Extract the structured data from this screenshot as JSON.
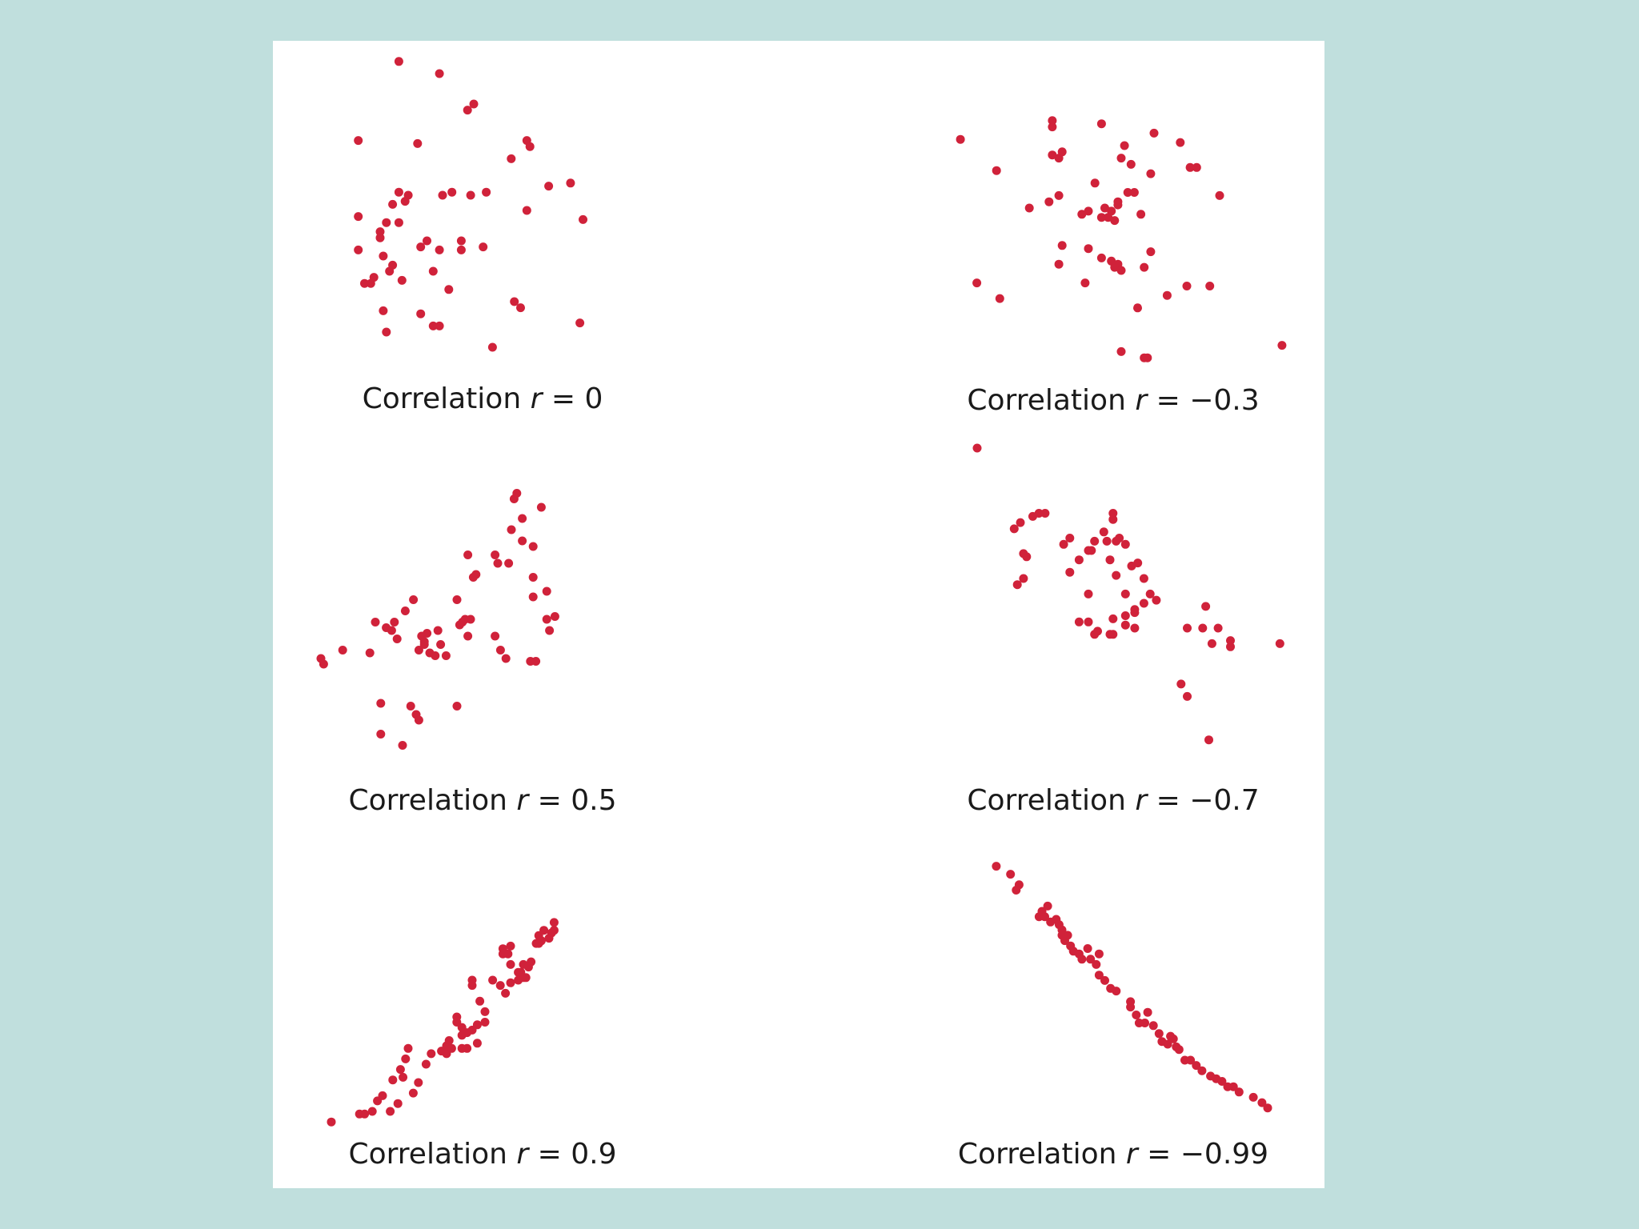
{
  "colors": {
    "background": "#c0dfdd",
    "panel": "#ffffff",
    "dot": "#d0223a",
    "text": "#1a1a1a"
  },
  "chart_data": [
    {
      "type": "scatter",
      "caption": {
        "prefix": "Correlation ",
        "variable": "r",
        "suffix": " = 0"
      },
      "xlim": [
        0,
        100
      ],
      "ylim": [
        0,
        100
      ],
      "points": [
        [
          26,
          99
        ],
        [
          39,
          95
        ],
        [
          48,
          83
        ],
        [
          50,
          85
        ],
        [
          13,
          73
        ],
        [
          32,
          72
        ],
        [
          67,
          73
        ],
        [
          68,
          71
        ],
        [
          62,
          67
        ],
        [
          81,
          59
        ],
        [
          74,
          58
        ],
        [
          26,
          56
        ],
        [
          29,
          55
        ],
        [
          40,
          55
        ],
        [
          43,
          56
        ],
        [
          49,
          55
        ],
        [
          54,
          56
        ],
        [
          24,
          52
        ],
        [
          28,
          53
        ],
        [
          13,
          48
        ],
        [
          67,
          50
        ],
        [
          85,
          47
        ],
        [
          22,
          46
        ],
        [
          26,
          46
        ],
        [
          20,
          43
        ],
        [
          20,
          41
        ],
        [
          35,
          40
        ],
        [
          46,
          40
        ],
        [
          33,
          38
        ],
        [
          53,
          38
        ],
        [
          39,
          37
        ],
        [
          46,
          37
        ],
        [
          21,
          35
        ],
        [
          13,
          37
        ],
        [
          15,
          26
        ],
        [
          17,
          26
        ],
        [
          23,
          30
        ],
        [
          18,
          28
        ],
        [
          37,
          30
        ],
        [
          24,
          32
        ],
        [
          27,
          27
        ],
        [
          42,
          24
        ],
        [
          63,
          20
        ],
        [
          65,
          18
        ],
        [
          21,
          17
        ],
        [
          33,
          16
        ],
        [
          39,
          12
        ],
        [
          37,
          12
        ],
        [
          22,
          10
        ],
        [
          56,
          5
        ],
        [
          84,
          13
        ]
      ]
    },
    {
      "type": "scatter",
      "caption": {
        "prefix": "Correlation ",
        "variable": "r",
        "suffix": " = −0.3"
      },
      "xlim": [
        0,
        100
      ],
      "ylim": [
        0,
        100
      ],
      "points": [
        [
          1,
          82
        ],
        [
          29,
          88
        ],
        [
          29,
          86
        ],
        [
          44,
          87
        ],
        [
          60,
          84
        ],
        [
          68,
          81
        ],
        [
          51,
          80
        ],
        [
          29,
          77
        ],
        [
          31,
          76
        ],
        [
          32,
          78
        ],
        [
          50,
          76
        ],
        [
          53,
          74
        ],
        [
          71,
          73
        ],
        [
          73,
          73
        ],
        [
          59,
          71
        ],
        [
          12,
          72
        ],
        [
          42,
          68
        ],
        [
          52,
          65
        ],
        [
          54,
          65
        ],
        [
          49,
          62
        ],
        [
          80,
          64
        ],
        [
          28,
          62
        ],
        [
          31,
          64
        ],
        [
          22,
          60
        ],
        [
          40,
          59
        ],
        [
          44,
          57
        ],
        [
          45,
          60
        ],
        [
          46,
          57
        ],
        [
          48,
          56
        ],
        [
          47,
          59
        ],
        [
          49,
          61
        ],
        [
          38,
          58
        ],
        [
          56,
          58
        ],
        [
          32,
          48
        ],
        [
          40,
          47
        ],
        [
          44,
          44
        ],
        [
          47,
          43
        ],
        [
          48,
          41
        ],
        [
          49,
          42
        ],
        [
          50,
          40
        ],
        [
          57,
          41
        ],
        [
          59,
          46
        ],
        [
          31,
          42
        ],
        [
          39,
          36
        ],
        [
          6,
          36
        ],
        [
          13,
          31
        ],
        [
          64,
          32
        ],
        [
          70,
          35
        ],
        [
          77,
          35
        ],
        [
          55,
          28
        ],
        [
          50,
          14
        ],
        [
          57,
          12
        ],
        [
          58,
          12
        ],
        [
          99,
          16
        ]
      ]
    },
    {
      "type": "scatter",
      "caption": {
        "prefix": "Correlation ",
        "variable": "r",
        "suffix": " = 0.5"
      },
      "xlim": [
        0,
        100
      ],
      "ylim": [
        0,
        100
      ],
      "points": [
        [
          0,
          36
        ],
        [
          1,
          34
        ],
        [
          8,
          39
        ],
        [
          20,
          49
        ],
        [
          26,
          46
        ],
        [
          27,
          49
        ],
        [
          31,
          53
        ],
        [
          34,
          57
        ],
        [
          28,
          43
        ],
        [
          38,
          42
        ],
        [
          37,
          44
        ],
        [
          38,
          41
        ],
        [
          40,
          38
        ],
        [
          39,
          45
        ],
        [
          44,
          41
        ],
        [
          36,
          39
        ],
        [
          42,
          37
        ],
        [
          52,
          49
        ],
        [
          53,
          50
        ],
        [
          51,
          48
        ],
        [
          55,
          50
        ],
        [
          54,
          44
        ],
        [
          50,
          57
        ],
        [
          57,
          66
        ],
        [
          54,
          73
        ],
        [
          56,
          65
        ],
        [
          64,
          73
        ],
        [
          65,
          70
        ],
        [
          70,
          82
        ],
        [
          69,
          70
        ],
        [
          78,
          76
        ],
        [
          78,
          65
        ],
        [
          81,
          90
        ],
        [
          78,
          58
        ],
        [
          83,
          50
        ],
        [
          84,
          46
        ],
        [
          86,
          51
        ],
        [
          83,
          60
        ],
        [
          72,
          95
        ],
        [
          71,
          93
        ],
        [
          74,
          86
        ],
        [
          74,
          78
        ],
        [
          79,
          35
        ],
        [
          77,
          35
        ],
        [
          64,
          44
        ],
        [
          66,
          39
        ],
        [
          46,
          37
        ],
        [
          43,
          46
        ],
        [
          24,
          47
        ],
        [
          18,
          38
        ],
        [
          22,
          20
        ],
        [
          33,
          19
        ],
        [
          35,
          16
        ],
        [
          36,
          14
        ],
        [
          22,
          9
        ],
        [
          30,
          5
        ],
        [
          50,
          19
        ],
        [
          68,
          36
        ]
      ]
    },
    {
      "type": "scatter",
      "caption": {
        "prefix": "Correlation ",
        "variable": "r",
        "suffix": " = −0.7"
      },
      "xlim": [
        0,
        100
      ],
      "ylim": [
        0,
        100
      ],
      "points": [
        [
          0,
          100
        ],
        [
          12,
          74
        ],
        [
          14,
          76
        ],
        [
          18,
          78
        ],
        [
          20,
          79
        ],
        [
          22,
          79
        ],
        [
          28,
          69
        ],
        [
          30,
          71
        ],
        [
          44,
          79
        ],
        [
          44,
          77
        ],
        [
          41,
          73
        ],
        [
          42,
          70
        ],
        [
          38,
          70
        ],
        [
          46,
          71
        ],
        [
          45,
          70
        ],
        [
          48,
          69
        ],
        [
          36,
          67
        ],
        [
          37,
          67
        ],
        [
          33,
          64
        ],
        [
          15,
          66
        ],
        [
          16,
          65
        ],
        [
          30,
          60
        ],
        [
          43,
          64
        ],
        [
          50,
          62
        ],
        [
          45,
          59
        ],
        [
          54,
          58
        ],
        [
          52,
          63
        ],
        [
          13,
          56
        ],
        [
          15,
          58
        ],
        [
          36,
          53
        ],
        [
          48,
          53
        ],
        [
          51,
          48
        ],
        [
          58,
          51
        ],
        [
          56,
          53
        ],
        [
          54,
          50
        ],
        [
          48,
          46
        ],
        [
          51,
          47
        ],
        [
          44,
          45
        ],
        [
          48,
          43
        ],
        [
          51,
          42
        ],
        [
          38,
          40
        ],
        [
          44,
          40
        ],
        [
          36,
          44
        ],
        [
          33,
          44
        ],
        [
          43,
          40
        ],
        [
          39,
          41
        ],
        [
          74,
          49
        ],
        [
          73,
          42
        ],
        [
          68,
          42
        ],
        [
          78,
          42
        ],
        [
          76,
          37
        ],
        [
          82,
          38
        ],
        [
          98,
          37
        ],
        [
          66,
          24
        ],
        [
          68,
          20
        ],
        [
          75,
          6
        ],
        [
          82,
          36
        ]
      ]
    },
    {
      "type": "scatter",
      "caption": {
        "prefix": "Correlation ",
        "variable": "r",
        "suffix": " = 0.9"
      },
      "xlim": [
        0,
        100
      ],
      "ylim": [
        0,
        100
      ],
      "points": [
        [
          0,
          3
        ],
        [
          11,
          6
        ],
        [
          13,
          6
        ],
        [
          16,
          7
        ],
        [
          23,
          7
        ],
        [
          20,
          13
        ],
        [
          18,
          11
        ],
        [
          26,
          10
        ],
        [
          34,
          18
        ],
        [
          32,
          14
        ],
        [
          24,
          19
        ],
        [
          28,
          20
        ],
        [
          29,
          27
        ],
        [
          27,
          23
        ],
        [
          30,
          31
        ],
        [
          37,
          25
        ],
        [
          39,
          29
        ],
        [
          43,
          30
        ],
        [
          45,
          29
        ],
        [
          45,
          31
        ],
        [
          45,
          32
        ],
        [
          46,
          34
        ],
        [
          47,
          31
        ],
        [
          51,
          31
        ],
        [
          53,
          31
        ],
        [
          57,
          33
        ],
        [
          49,
          41
        ],
        [
          49,
          43
        ],
        [
          51,
          36
        ],
        [
          51,
          39
        ],
        [
          53,
          37
        ],
        [
          57,
          40
        ],
        [
          55,
          38
        ],
        [
          60,
          45
        ],
        [
          55,
          55
        ],
        [
          55,
          57
        ],
        [
          58,
          49
        ],
        [
          60,
          41
        ],
        [
          63,
          57
        ],
        [
          66,
          55
        ],
        [
          68,
          52
        ],
        [
          70,
          56
        ],
        [
          70,
          63
        ],
        [
          73,
          60
        ],
        [
          73,
          57
        ],
        [
          75,
          63
        ],
        [
          76,
          58
        ],
        [
          77,
          62
        ],
        [
          80,
          71
        ],
        [
          82,
          72
        ],
        [
          81,
          74
        ],
        [
          83,
          76
        ],
        [
          85,
          73
        ],
        [
          87,
          76
        ],
        [
          87,
          79
        ],
        [
          86,
          75
        ],
        [
          78,
          64
        ],
        [
          75,
          58
        ],
        [
          74,
          60
        ],
        [
          67,
          69
        ],
        [
          70,
          70
        ],
        [
          69,
          67
        ],
        [
          67,
          67
        ],
        [
          81,
          71
        ]
      ]
    },
    {
      "type": "scatter",
      "caption": {
        "prefix": "Correlation ",
        "variable": "r",
        "suffix": " = −0.99"
      },
      "xlim": [
        0,
        100
      ],
      "ylim": [
        0,
        100
      ],
      "points": [
        [
          5,
          95
        ],
        [
          10,
          92
        ],
        [
          13,
          88
        ],
        [
          12,
          86
        ],
        [
          23,
          80
        ],
        [
          20,
          76
        ],
        [
          22,
          76
        ],
        [
          26,
          75
        ],
        [
          27,
          73
        ],
        [
          28,
          71
        ],
        [
          29,
          67
        ],
        [
          30,
          69
        ],
        [
          31,
          65
        ],
        [
          32,
          63
        ],
        [
          34,
          62
        ],
        [
          37,
          64
        ],
        [
          38,
          60
        ],
        [
          40,
          58
        ],
        [
          41,
          62
        ],
        [
          41,
          54
        ],
        [
          43,
          52
        ],
        [
          45,
          49
        ],
        [
          47,
          48
        ],
        [
          52,
          44
        ],
        [
          52,
          42
        ],
        [
          54,
          39
        ],
        [
          55,
          36
        ],
        [
          57,
          36
        ],
        [
          58,
          40
        ],
        [
          60,
          35
        ],
        [
          62,
          32
        ],
        [
          63,
          29
        ],
        [
          65,
          28
        ],
        [
          67,
          30
        ],
        [
          68,
          27
        ],
        [
          66,
          31
        ],
        [
          69,
          26
        ],
        [
          71,
          22
        ],
        [
          75,
          20
        ],
        [
          73,
          22
        ],
        [
          77,
          18
        ],
        [
          80,
          16
        ],
        [
          82,
          15
        ],
        [
          84,
          14
        ],
        [
          86,
          12
        ],
        [
          88,
          12
        ],
        [
          90,
          10
        ],
        [
          95,
          8
        ],
        [
          98,
          6
        ],
        [
          100,
          4
        ],
        [
          24,
          74
        ],
        [
          21,
          78
        ],
        [
          28,
          69
        ],
        [
          35,
          60
        ]
      ]
    }
  ]
}
